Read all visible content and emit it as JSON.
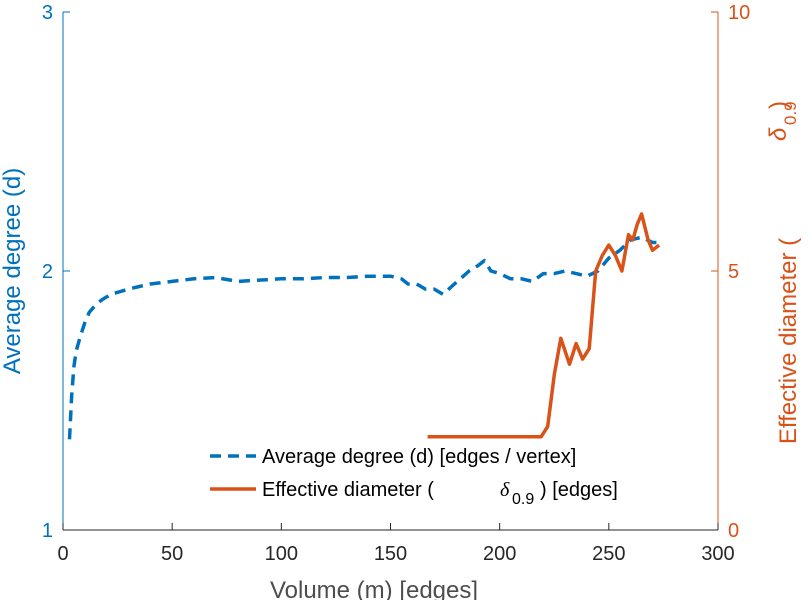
{
  "chart_data": {
    "type": "line",
    "xlabel": "Volume (m) [edges]",
    "xlim": [
      0,
      300
    ],
    "xticks": [
      0,
      50,
      100,
      150,
      200,
      250,
      300
    ],
    "x_tick_labels": [
      "0",
      "50",
      "100",
      "150",
      "200",
      "250",
      "300"
    ],
    "left_axis": {
      "label": "Average degree (d)",
      "ylim": [
        1,
        3
      ],
      "ticks": [
        1,
        2,
        3
      ],
      "tick_labels": [
        "1",
        "2",
        "3"
      ],
      "color": "#0072BD"
    },
    "right_axis": {
      "label_prefix": "Effective diameter (",
      "label_symbol": "δ",
      "label_subscript": "0.9",
      "label_suffix": ")",
      "ylim": [
        0,
        10
      ],
      "ticks": [
        0,
        5,
        10
      ],
      "tick_labels": [
        "0",
        "5",
        "10"
      ],
      "color": "#D95319"
    },
    "series": [
      {
        "name": "Average degree (d) [edges / vertex]",
        "axis": "left",
        "style": "dashed",
        "color": "#0072BD",
        "x": [
          3,
          4,
          5,
          6,
          8,
          10,
          12,
          15,
          18,
          22,
          26,
          30,
          35,
          40,
          50,
          60,
          70,
          80,
          90,
          100,
          110,
          120,
          130,
          140,
          150,
          155,
          158,
          162,
          166,
          170,
          174,
          178,
          182,
          186,
          190,
          193,
          196,
          200,
          205,
          210,
          215,
          220,
          225,
          230,
          235,
          240,
          245,
          250,
          255,
          260,
          265,
          270,
          275
        ],
        "values": [
          1.35,
          1.52,
          1.63,
          1.69,
          1.75,
          1.8,
          1.84,
          1.87,
          1.89,
          1.91,
          1.92,
          1.93,
          1.94,
          1.95,
          1.96,
          1.97,
          1.975,
          1.96,
          1.965,
          1.97,
          1.97,
          1.975,
          1.975,
          1.98,
          1.98,
          1.97,
          1.95,
          1.95,
          1.93,
          1.93,
          1.91,
          1.94,
          1.97,
          2.0,
          2.02,
          2.04,
          2.0,
          1.99,
          1.97,
          1.97,
          1.96,
          1.99,
          1.99,
          2.0,
          1.99,
          1.98,
          2.0,
          2.05,
          2.08,
          2.12,
          2.13,
          2.11,
          2.11
        ]
      },
      {
        "name": "Effective diameter (δ0.9) [edges]",
        "legend_prefix": "Effective diameter (",
        "legend_symbol": "δ",
        "legend_subscript": "0.9",
        "legend_suffix": ") [edges]",
        "axis": "right",
        "style": "solid",
        "color": "#D95319",
        "x": [
          167,
          175,
          185,
          195,
          205,
          215,
          219,
          222,
          225,
          228,
          232,
          235,
          238,
          241,
          244,
          247,
          250,
          253,
          256,
          259,
          261,
          263,
          265,
          268,
          270,
          273
        ],
        "values": [
          1.8,
          1.8,
          1.8,
          1.8,
          1.8,
          1.8,
          1.8,
          2.0,
          3.0,
          3.7,
          3.2,
          3.6,
          3.3,
          3.5,
          5.0,
          5.3,
          5.5,
          5.3,
          5.0,
          5.7,
          5.6,
          5.9,
          6.1,
          5.6,
          5.4,
          5.5
        ]
      }
    ],
    "legend_location": "bottom-center"
  }
}
